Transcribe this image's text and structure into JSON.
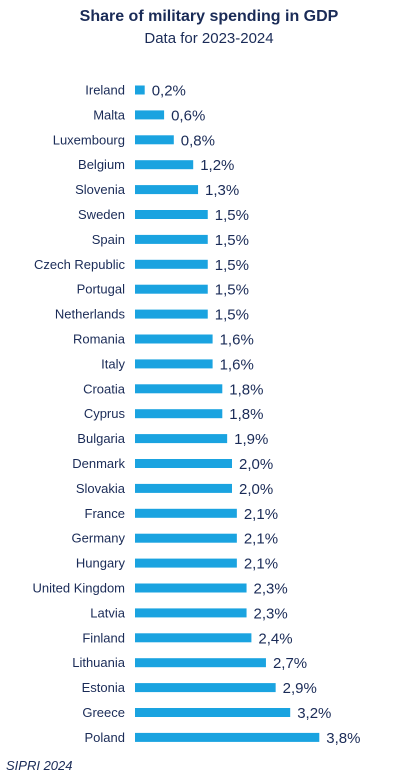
{
  "chart_data": {
    "type": "bar",
    "orientation": "horizontal",
    "title": "Share of military spending in GDP",
    "subtitle": "Data for 2023-2024",
    "categories": [
      "Ireland",
      "Malta",
      "Luxembourg",
      "Belgium",
      "Slovenia",
      "Sweden",
      "Spain",
      "Czech Republic",
      "Portugal",
      "Netherlands",
      "Romania",
      "Italy",
      "Croatia",
      "Cyprus",
      "Bulgaria",
      "Denmark",
      "Slovakia",
      "France",
      "Germany",
      "Hungary",
      "United Kingdom",
      "Latvia",
      "Finland",
      "Lithuania",
      "Estonia",
      "Greece",
      "Poland"
    ],
    "values": [
      0.2,
      0.6,
      0.8,
      1.2,
      1.3,
      1.5,
      1.5,
      1.5,
      1.5,
      1.5,
      1.6,
      1.6,
      1.8,
      1.8,
      1.9,
      2.0,
      2.0,
      2.1,
      2.1,
      2.1,
      2.3,
      2.3,
      2.4,
      2.7,
      2.9,
      3.2,
      3.8
    ],
    "value_labels": [
      "0,2%",
      "0,6%",
      "0,8%",
      "1,2%",
      "1,3%",
      "1,5%",
      "1,5%",
      "1,5%",
      "1,5%",
      "1,5%",
      "1,6%",
      "1,6%",
      "1,8%",
      "1,8%",
      "1,9%",
      "2,0%",
      "2,0%",
      "2,1%",
      "2,1%",
      "2,1%",
      "2,3%",
      "2,3%",
      "2,4%",
      "2,7%",
      "2,9%",
      "3,2%",
      "3,8%"
    ],
    "bar_color": "#1aa3e0",
    "text_color": "#1a2b57",
    "grid": false,
    "legend": "none"
  },
  "source": "SIPRI 2024"
}
